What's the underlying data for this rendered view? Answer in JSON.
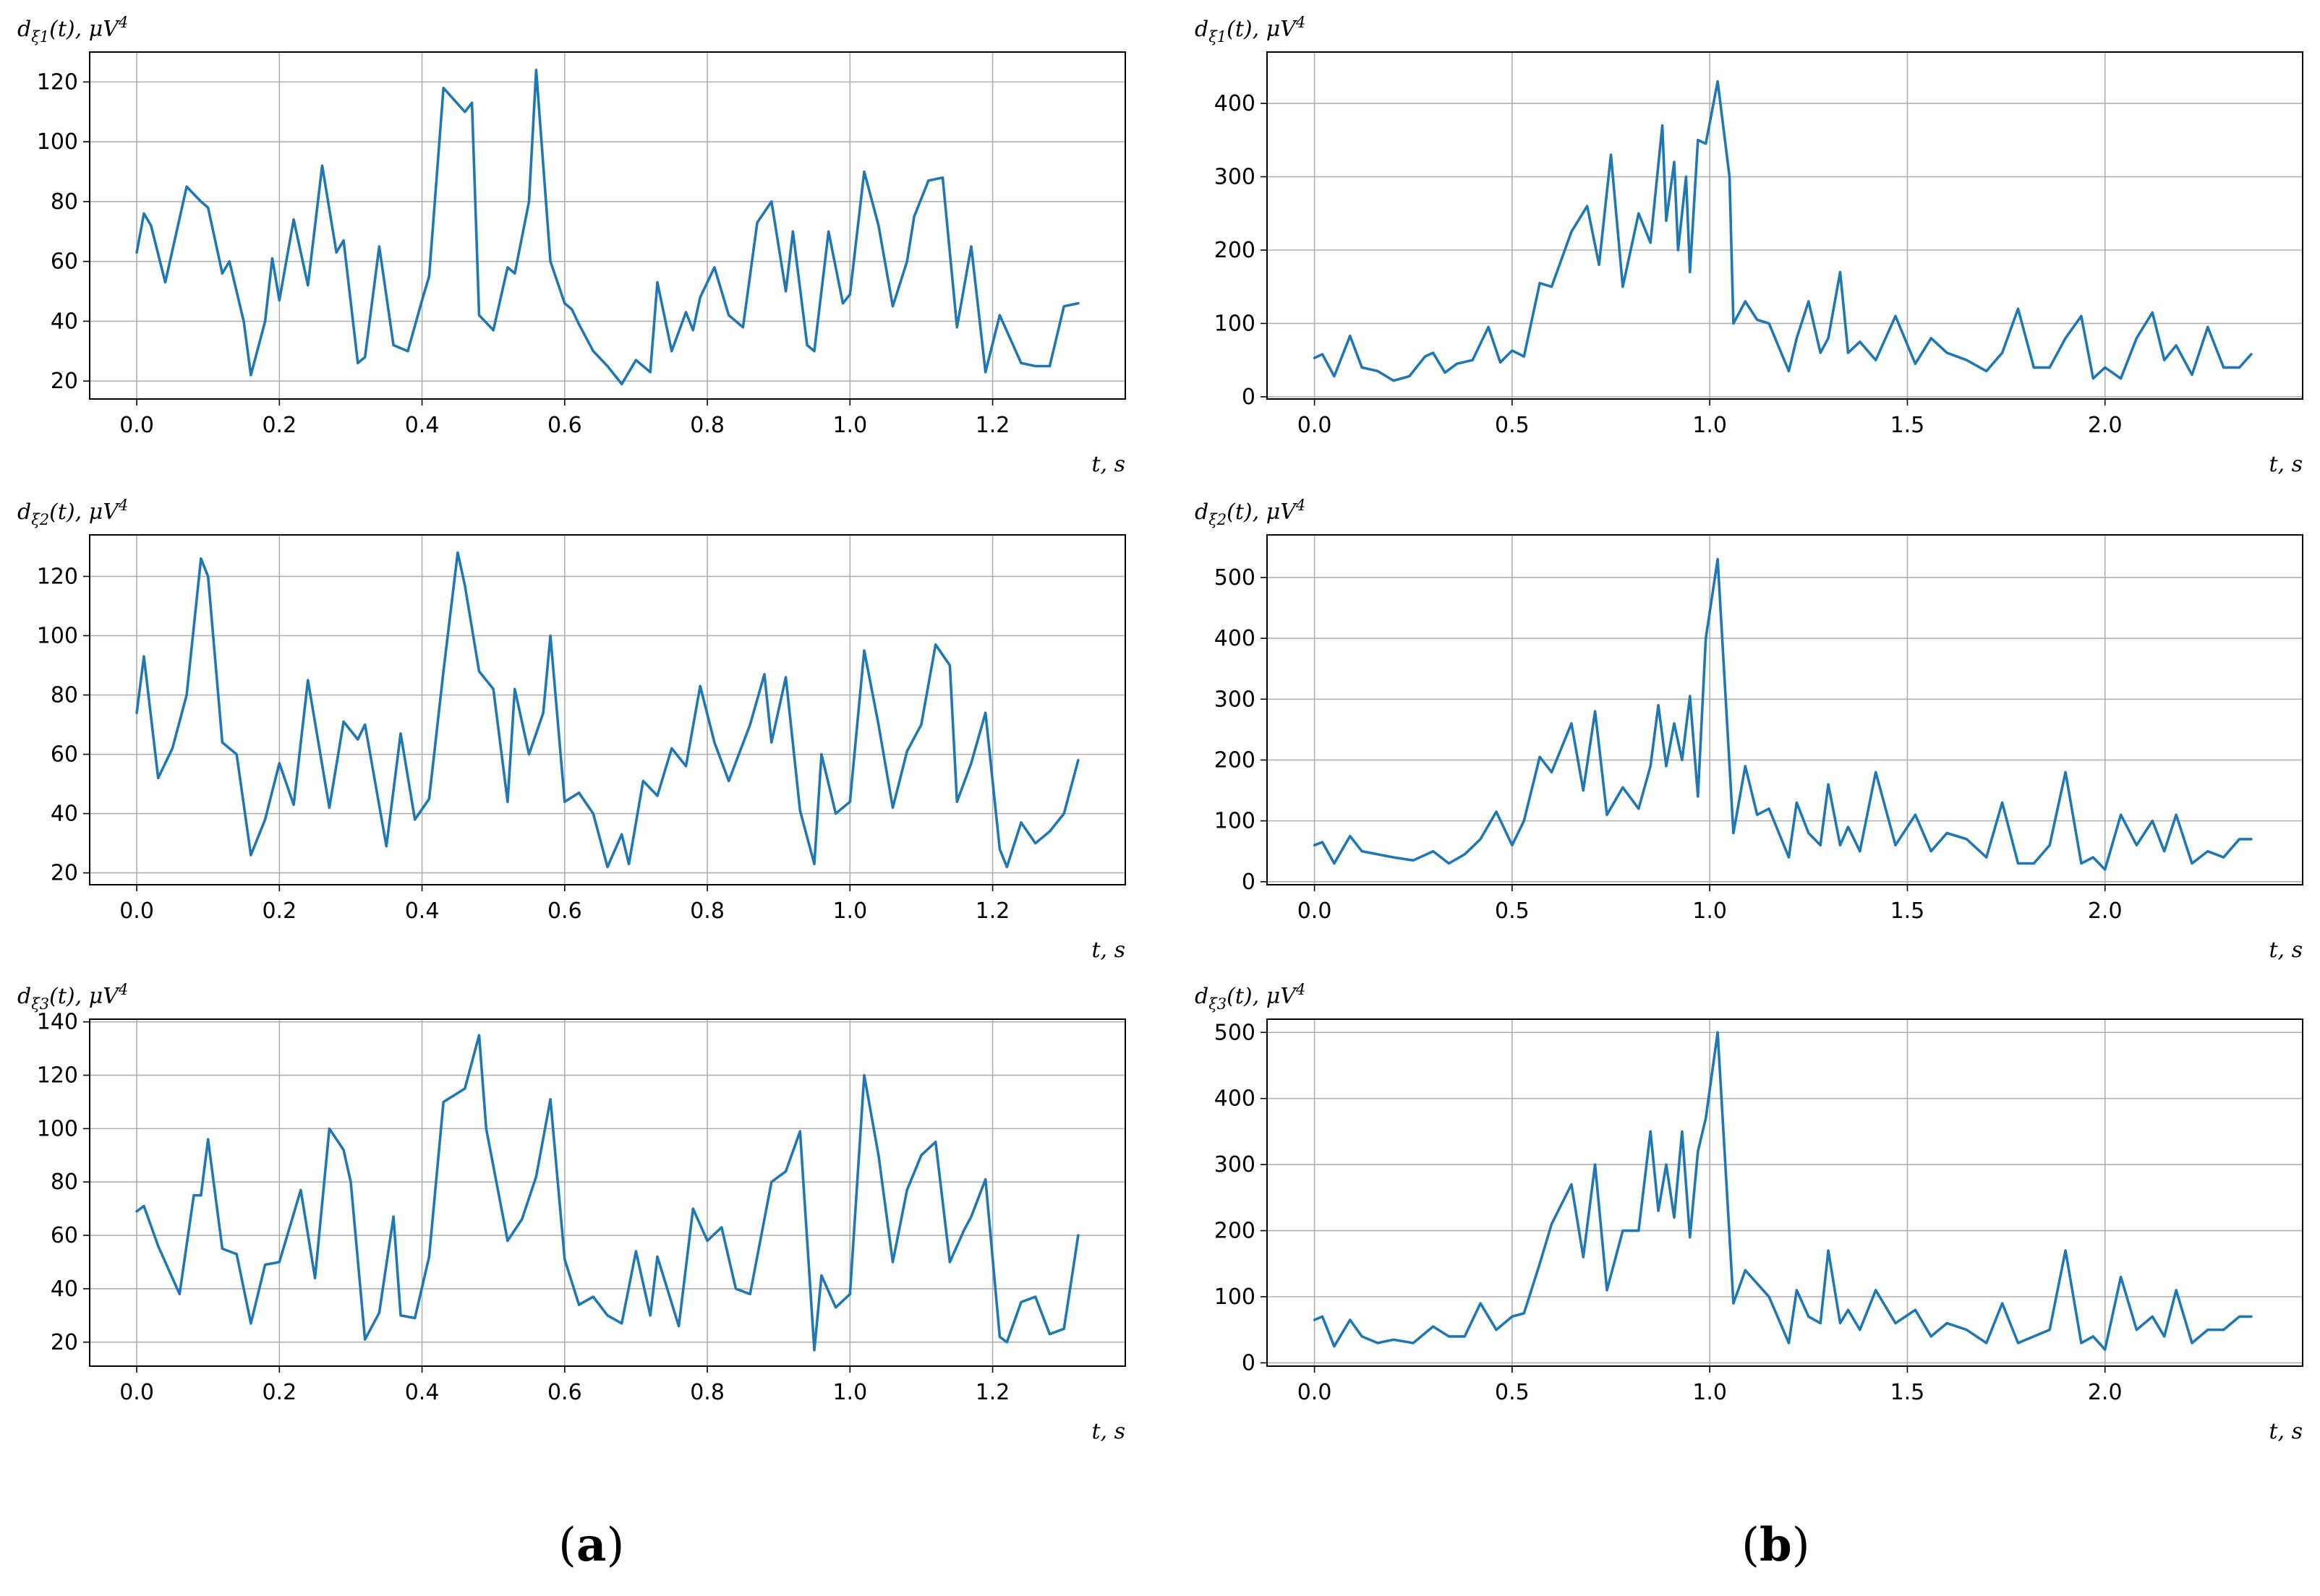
{
  "series_color": "#1f77b4",
  "panel_labels": {
    "a": "a",
    "b": "b"
  },
  "chart_data": [
    {
      "type": "line",
      "panel": "a",
      "row": 0,
      "ylabel": "d_{ξ1}(t), μV^4",
      "ylabel_main": "d",
      "ylabel_sub": "ξ1",
      "ylabel_tail": "(t), μV",
      "ylabel_sup": "4",
      "xlabel": "t, s",
      "xlim": [
        -0.066,
        1.386
      ],
      "ylim": [
        14,
        130
      ],
      "xticks": [
        0.0,
        0.2,
        0.4,
        0.6,
        0.8,
        1.0,
        1.2
      ],
      "xtick_labels": [
        "0.0",
        "0.2",
        "0.4",
        "0.6",
        "0.8",
        "1.0",
        "1.2"
      ],
      "yticks": [
        20,
        40,
        60,
        80,
        100,
        120
      ],
      "ytick_labels": [
        "20",
        "40",
        "60",
        "80",
        "100",
        "120"
      ],
      "grid": true,
      "x": [
        0,
        0.01,
        0.02,
        0.04,
        0.07,
        0.09,
        0.1,
        0.12,
        0.13,
        0.15,
        0.16,
        0.18,
        0.19,
        0.2,
        0.22,
        0.24,
        0.26,
        0.28,
        0.29,
        0.31,
        0.32,
        0.34,
        0.36,
        0.38,
        0.4,
        0.41,
        0.43,
        0.46,
        0.47,
        0.48,
        0.5,
        0.52,
        0.53,
        0.55,
        0.56,
        0.58,
        0.6,
        0.61,
        0.62,
        0.64,
        0.66,
        0.68,
        0.7,
        0.72,
        0.73,
        0.75,
        0.77,
        0.78,
        0.79,
        0.81,
        0.83,
        0.85,
        0.87,
        0.89,
        0.91,
        0.92,
        0.94,
        0.95,
        0.97,
        0.99,
        1.0,
        1.02,
        1.04,
        1.06,
        1.08,
        1.09,
        1.11,
        1.13,
        1.15,
        1.17,
        1.19,
        1.21,
        1.24,
        1.26,
        1.28,
        1.3,
        1.32
      ],
      "values": [
        63,
        76,
        72,
        53,
        85,
        80,
        78,
        56,
        60,
        40,
        22,
        40,
        61,
        47,
        74,
        52,
        92,
        63,
        67,
        26,
        28,
        65,
        32,
        30,
        47,
        55,
        118,
        110,
        113,
        42,
        37,
        58,
        56,
        80,
        124,
        60,
        46,
        44,
        39,
        30,
        25,
        19,
        27,
        23,
        53,
        30,
        43,
        37,
        48,
        58,
        42,
        38,
        73,
        80,
        50,
        70,
        32,
        30,
        70,
        46,
        49,
        90,
        72,
        45,
        60,
        75,
        87,
        88,
        38,
        65,
        23,
        42,
        26,
        25,
        25,
        45,
        46
      ]
    },
    {
      "type": "line",
      "panel": "a",
      "row": 1,
      "ylabel": "d_{ξ2}(t), μV^4",
      "ylabel_main": "d",
      "ylabel_sub": "ξ2",
      "ylabel_tail": "(t), μV",
      "ylabel_sup": "4",
      "xlabel": "t, s",
      "xlim": [
        -0.066,
        1.386
      ],
      "ylim": [
        16,
        134
      ],
      "xticks": [
        0.0,
        0.2,
        0.4,
        0.6,
        0.8,
        1.0,
        1.2
      ],
      "xtick_labels": [
        "0.0",
        "0.2",
        "0.4",
        "0.6",
        "0.8",
        "1.0",
        "1.2"
      ],
      "yticks": [
        20,
        40,
        60,
        80,
        100,
        120
      ],
      "ytick_labels": [
        "20",
        "40",
        "60",
        "80",
        "100",
        "120"
      ],
      "grid": true,
      "x": [
        0,
        0.01,
        0.03,
        0.05,
        0.07,
        0.09,
        0.1,
        0.12,
        0.14,
        0.16,
        0.18,
        0.2,
        0.22,
        0.24,
        0.27,
        0.29,
        0.31,
        0.32,
        0.35,
        0.37,
        0.39,
        0.41,
        0.43,
        0.45,
        0.46,
        0.48,
        0.5,
        0.52,
        0.53,
        0.55,
        0.57,
        0.58,
        0.6,
        0.62,
        0.64,
        0.66,
        0.68,
        0.69,
        0.71,
        0.73,
        0.75,
        0.77,
        0.79,
        0.81,
        0.83,
        0.86,
        0.88,
        0.89,
        0.91,
        0.93,
        0.95,
        0.96,
        0.98,
        1.0,
        1.02,
        1.04,
        1.06,
        1.08,
        1.1,
        1.12,
        1.14,
        1.15,
        1.17,
        1.19,
        1.21,
        1.22,
        1.24,
        1.26,
        1.28,
        1.3,
        1.32
      ],
      "values": [
        74,
        93,
        52,
        62,
        80,
        126,
        120,
        64,
        60,
        26,
        38,
        57,
        43,
        85,
        42,
        71,
        65,
        70,
        29,
        67,
        38,
        45,
        88,
        128,
        117,
        88,
        82,
        44,
        82,
        60,
        74,
        100,
        44,
        47,
        40,
        22,
        33,
        23,
        51,
        46,
        62,
        56,
        83,
        64,
        51,
        70,
        87,
        64,
        86,
        41,
        23,
        60,
        40,
        44,
        95,
        70,
        42,
        61,
        70,
        97,
        90,
        44,
        57,
        74,
        28,
        22,
        37,
        30,
        34,
        40,
        58
      ]
    },
    {
      "type": "line",
      "panel": "a",
      "row": 2,
      "ylabel": "d_{ξ3}(t), μV^4",
      "ylabel_main": "d",
      "ylabel_sub": "ξ3",
      "ylabel_tail": "(t), μV",
      "ylabel_sup": "4",
      "xlabel": "t, s",
      "xlim": [
        -0.066,
        1.386
      ],
      "ylim": [
        11,
        141
      ],
      "xticks": [
        0.0,
        0.2,
        0.4,
        0.6,
        0.8,
        1.0,
        1.2
      ],
      "xtick_labels": [
        "0.0",
        "0.2",
        "0.4",
        "0.6",
        "0.8",
        "1.0",
        "1.2"
      ],
      "yticks": [
        20,
        40,
        60,
        80,
        100,
        120,
        140
      ],
      "ytick_labels": [
        "20",
        "40",
        "60",
        "80",
        "100",
        "120",
        "140"
      ],
      "grid": true,
      "x": [
        0,
        0.01,
        0.03,
        0.06,
        0.08,
        0.09,
        0.1,
        0.12,
        0.14,
        0.16,
        0.18,
        0.2,
        0.23,
        0.25,
        0.27,
        0.29,
        0.3,
        0.32,
        0.34,
        0.36,
        0.37,
        0.39,
        0.41,
        0.43,
        0.46,
        0.48,
        0.49,
        0.52,
        0.54,
        0.56,
        0.58,
        0.6,
        0.62,
        0.64,
        0.66,
        0.68,
        0.7,
        0.72,
        0.73,
        0.76,
        0.78,
        0.8,
        0.82,
        0.84,
        0.86,
        0.89,
        0.91,
        0.93,
        0.95,
        0.96,
        0.98,
        1.0,
        1.02,
        1.04,
        1.06,
        1.08,
        1.1,
        1.12,
        1.14,
        1.16,
        1.17,
        1.19,
        1.21,
        1.22,
        1.24,
        1.26,
        1.28,
        1.3,
        1.32
      ],
      "values": [
        69,
        71,
        56,
        38,
        75,
        75,
        96,
        55,
        53,
        27,
        49,
        50,
        77,
        44,
        100,
        92,
        80,
        21,
        31,
        67,
        30,
        29,
        52,
        110,
        115,
        135,
        100,
        58,
        66,
        82,
        111,
        51,
        34,
        37,
        30,
        27,
        54,
        30,
        52,
        26,
        70,
        58,
        63,
        40,
        38,
        80,
        84,
        99,
        17,
        45,
        33,
        38,
        120,
        90,
        50,
        77,
        90,
        95,
        50,
        62,
        67,
        81,
        22,
        20,
        35,
        37,
        23,
        25,
        60
      ]
    },
    {
      "type": "line",
      "panel": "b",
      "row": 0,
      "ylabel": "d_{ξ1}(t), μV^4",
      "ylabel_main": "d",
      "ylabel_sub": "ξ1",
      "ylabel_tail": "(t), μV",
      "ylabel_sup": "4",
      "xlabel": "t, s",
      "xlim": [
        -0.12,
        2.5
      ],
      "ylim": [
        -3,
        470
      ],
      "xticks": [
        0.0,
        0.5,
        1.0,
        1.5,
        2.0
      ],
      "xtick_labels": [
        "0.0",
        "0.5",
        "1.0",
        "1.5",
        "2.0"
      ],
      "yticks": [
        0,
        100,
        200,
        300,
        400
      ],
      "ytick_labels": [
        "0",
        "100",
        "200",
        "300",
        "400"
      ],
      "grid": true,
      "x": [
        0,
        0.02,
        0.05,
        0.09,
        0.12,
        0.16,
        0.2,
        0.24,
        0.28,
        0.3,
        0.33,
        0.36,
        0.4,
        0.44,
        0.47,
        0.5,
        0.53,
        0.57,
        0.6,
        0.65,
        0.69,
        0.72,
        0.75,
        0.78,
        0.82,
        0.85,
        0.88,
        0.89,
        0.91,
        0.92,
        0.94,
        0.95,
        0.97,
        0.99,
        1.02,
        1.05,
        1.06,
        1.09,
        1.12,
        1.15,
        1.2,
        1.22,
        1.25,
        1.28,
        1.3,
        1.33,
        1.35,
        1.38,
        1.42,
        1.47,
        1.52,
        1.56,
        1.6,
        1.65,
        1.7,
        1.74,
        1.78,
        1.82,
        1.86,
        1.9,
        1.94,
        1.97,
        2.0,
        2.04,
        2.08,
        2.12,
        2.15,
        2.18,
        2.22,
        2.26,
        2.3,
        2.34,
        2.37
      ],
      "values": [
        53,
        58,
        28,
        83,
        40,
        35,
        22,
        28,
        55,
        60,
        33,
        45,
        50,
        95,
        47,
        63,
        55,
        155,
        150,
        225,
        260,
        180,
        330,
        150,
        250,
        210,
        370,
        240,
        320,
        200,
        300,
        170,
        350,
        345,
        430,
        300,
        100,
        130,
        105,
        100,
        35,
        80,
        130,
        60,
        80,
        170,
        60,
        75,
        50,
        110,
        45,
        80,
        60,
        50,
        35,
        60,
        120,
        40,
        40,
        80,
        110,
        25,
        40,
        25,
        80,
        115,
        50,
        70,
        30,
        95,
        40,
        40,
        58
      ]
    },
    {
      "type": "line",
      "panel": "b",
      "row": 1,
      "ylabel": "d_{ξ2}(t), μV^4",
      "ylabel_main": "d",
      "ylabel_sub": "ξ2",
      "ylabel_tail": "(t), μV",
      "ylabel_sup": "4",
      "xlabel": "t, s",
      "xlim": [
        -0.12,
        2.5
      ],
      "ylim": [
        -5,
        570
      ],
      "xticks": [
        0.0,
        0.5,
        1.0,
        1.5,
        2.0
      ],
      "xtick_labels": [
        "0.0",
        "0.5",
        "1.0",
        "1.5",
        "2.0"
      ],
      "yticks": [
        0,
        100,
        200,
        300,
        400,
        500
      ],
      "ytick_labels": [
        "0",
        "100",
        "200",
        "300",
        "400",
        "500"
      ],
      "grid": true,
      "x": [
        0,
        0.02,
        0.05,
        0.09,
        0.12,
        0.16,
        0.2,
        0.25,
        0.3,
        0.34,
        0.38,
        0.42,
        0.46,
        0.5,
        0.53,
        0.57,
        0.6,
        0.65,
        0.68,
        0.71,
        0.74,
        0.78,
        0.82,
        0.85,
        0.87,
        0.89,
        0.91,
        0.93,
        0.95,
        0.97,
        0.99,
        1.02,
        1.06,
        1.09,
        1.12,
        1.15,
        1.2,
        1.22,
        1.25,
        1.28,
        1.3,
        1.33,
        1.35,
        1.38,
        1.42,
        1.47,
        1.52,
        1.56,
        1.6,
        1.65,
        1.7,
        1.74,
        1.78,
        1.82,
        1.86,
        1.9,
        1.94,
        1.97,
        2.0,
        2.04,
        2.08,
        2.12,
        2.15,
        2.18,
        2.22,
        2.26,
        2.3,
        2.34,
        2.37
      ],
      "values": [
        60,
        65,
        30,
        75,
        50,
        45,
        40,
        35,
        50,
        30,
        45,
        70,
        115,
        60,
        100,
        205,
        180,
        260,
        150,
        280,
        110,
        155,
        120,
        190,
        290,
        190,
        260,
        200,
        305,
        140,
        400,
        530,
        80,
        190,
        110,
        120,
        40,
        130,
        80,
        60,
        160,
        60,
        90,
        50,
        180,
        60,
        110,
        50,
        80,
        70,
        40,
        130,
        30,
        30,
        60,
        180,
        30,
        40,
        20,
        110,
        60,
        100,
        50,
        110,
        30,
        50,
        40,
        70,
        70
      ]
    },
    {
      "type": "line",
      "panel": "b",
      "row": 2,
      "ylabel": "d_{ξ3}(t), μV^4",
      "ylabel_main": "d",
      "ylabel_sub": "ξ3",
      "ylabel_tail": "(t), μV",
      "ylabel_sup": "4",
      "xlabel": "t, s",
      "xlim": [
        -0.12,
        2.5
      ],
      "ylim": [
        -5,
        520
      ],
      "xticks": [
        0.0,
        0.5,
        1.0,
        1.5,
        2.0
      ],
      "xtick_labels": [
        "0.0",
        "0.5",
        "1.0",
        "1.5",
        "2.0"
      ],
      "yticks": [
        0,
        100,
        200,
        300,
        400,
        500
      ],
      "ytick_labels": [
        "0",
        "100",
        "200",
        "300",
        "400",
        "500"
      ],
      "grid": true,
      "x": [
        0,
        0.02,
        0.05,
        0.09,
        0.12,
        0.16,
        0.2,
        0.25,
        0.3,
        0.34,
        0.38,
        0.42,
        0.46,
        0.5,
        0.53,
        0.57,
        0.6,
        0.65,
        0.68,
        0.71,
        0.74,
        0.78,
        0.82,
        0.85,
        0.87,
        0.89,
        0.91,
        0.93,
        0.95,
        0.97,
        0.99,
        1.02,
        1.06,
        1.09,
        1.12,
        1.15,
        1.2,
        1.22,
        1.25,
        1.28,
        1.3,
        1.33,
        1.35,
        1.38,
        1.42,
        1.47,
        1.52,
        1.56,
        1.6,
        1.65,
        1.7,
        1.74,
        1.78,
        1.82,
        1.86,
        1.9,
        1.94,
        1.97,
        2.0,
        2.04,
        2.08,
        2.12,
        2.15,
        2.18,
        2.22,
        2.26,
        2.3,
        2.34,
        2.37
      ],
      "values": [
        65,
        70,
        25,
        65,
        40,
        30,
        35,
        30,
        55,
        40,
        40,
        90,
        50,
        70,
        75,
        150,
        210,
        270,
        160,
        300,
        110,
        200,
        200,
        350,
        230,
        300,
        220,
        350,
        190,
        320,
        370,
        500,
        90,
        140,
        120,
        100,
        30,
        110,
        70,
        60,
        170,
        60,
        80,
        50,
        110,
        60,
        80,
        40,
        60,
        50,
        30,
        90,
        30,
        40,
        50,
        170,
        30,
        40,
        20,
        130,
        50,
        70,
        40,
        110,
        30,
        50,
        50,
        70,
        70
      ]
    }
  ]
}
